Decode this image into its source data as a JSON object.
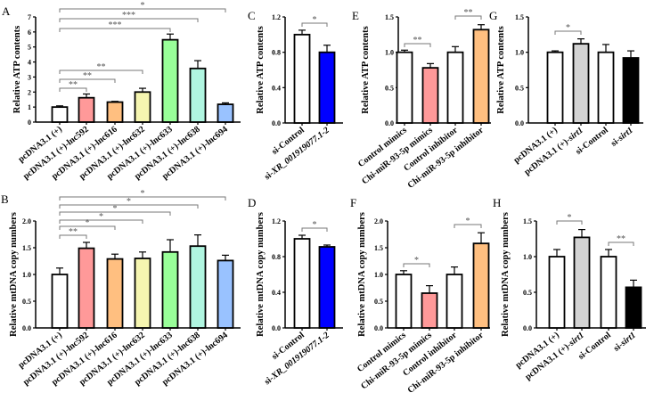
{
  "chart_data": [
    {
      "panel": "A",
      "type": "bar",
      "ylabel": "Relative ATP contents",
      "ylim": [
        0,
        7
      ],
      "ticks": [
        0,
        1,
        2,
        3,
        4,
        5,
        6,
        7
      ],
      "tick_labels": [
        "0",
        "1",
        "2",
        "3",
        "4",
        "5",
        "6",
        "7"
      ],
      "categories": [
        "pcDNA3.1 (+)",
        "pcDNA3.1 (+)-lnc592",
        "pcDNA3.1 (+)-lnc616",
        "pcDNA3.1 (+)-lnc632",
        "pcDNA3.1 (+)-lnc633",
        "pcDNA3.1 (+)-lnc638",
        "pcDNA3.1 (+)-lnc694"
      ],
      "values": [
        1.0,
        1.62,
        1.33,
        2.0,
        5.48,
        3.57,
        1.18
      ],
      "errors": [
        0.08,
        0.25,
        0.05,
        0.25,
        0.38,
        0.52,
        0.1
      ],
      "colors": [
        "#FFFFFF",
        "#FF9999",
        "#FFBF80",
        "#F5F5B0",
        "#99FF99",
        "#B0F5E0",
        "#99C2FF"
      ],
      "significance": [
        {
          "from": 0,
          "to": 1,
          "label": "**"
        },
        {
          "from": 0,
          "to": 2,
          "label": "**"
        },
        {
          "from": 0,
          "to": 3,
          "label": "**"
        },
        {
          "from": 0,
          "to": 4,
          "label": "***"
        },
        {
          "from": 0,
          "to": 5,
          "label": "***"
        },
        {
          "from": 0,
          "to": 6,
          "label": "*"
        }
      ]
    },
    {
      "panel": "B",
      "type": "bar",
      "ylabel": "Relative mtDNA copy numbers",
      "ylim": [
        0,
        2
      ],
      "ticks": [
        0,
        0.5,
        1,
        1.5,
        2
      ],
      "tick_labels": [
        "0.0",
        "0.5",
        "1.0",
        "1.5",
        "2.0"
      ],
      "categories": [
        "pcDNA3.1 (+)",
        "pcDNA3.1 (+)-lnc592",
        "pcDNA3.1 (+)-lnc616",
        "pcDNA3.1 (+)-lnc632",
        "pcDNA3.1 (+)-lnc633",
        "pcDNA3.1 (+)-lnc638",
        "pcDNA3.1 (+)-lnc694"
      ],
      "values": [
        1.0,
        1.49,
        1.29,
        1.3,
        1.42,
        1.53,
        1.26
      ],
      "errors": [
        0.12,
        0.11,
        0.09,
        0.12,
        0.23,
        0.21,
        0.1
      ],
      "colors": [
        "#FFFFFF",
        "#FF9999",
        "#FFBF80",
        "#F5F5B0",
        "#99FF99",
        "#B0F5E0",
        "#99C2FF"
      ],
      "significance": [
        {
          "from": 0,
          "to": 1,
          "label": "**"
        },
        {
          "from": 0,
          "to": 2,
          "label": "*"
        },
        {
          "from": 0,
          "to": 3,
          "label": "*"
        },
        {
          "from": 0,
          "to": 4,
          "label": "*"
        },
        {
          "from": 0,
          "to": 5,
          "label": "*"
        },
        {
          "from": 0,
          "to": 6,
          "label": "*"
        }
      ]
    },
    {
      "panel": "C",
      "type": "bar",
      "ylabel": "Relative ATP contents",
      "ylim": [
        0,
        1.2
      ],
      "ticks": [
        0,
        0.4,
        0.8,
        1.2
      ],
      "tick_labels": [
        "0.0",
        "0.4",
        "0.8",
        "1.2"
      ],
      "categories": [
        "si-Control",
        "si-XR_001919077.1-2"
      ],
      "italic": "XR_001919077.1-2",
      "values": [
        1.0,
        0.8
      ],
      "errors": [
        0.05,
        0.08
      ],
      "colors": [
        "#FFFFFF",
        "#0000FF"
      ],
      "significance": [
        {
          "from": 0,
          "to": 1,
          "label": "*"
        }
      ]
    },
    {
      "panel": "D",
      "type": "bar",
      "ylabel": "Relative mtDNA copy numbers",
      "ylim": [
        0,
        1.2
      ],
      "ticks": [
        0,
        0.4,
        0.8,
        1.2
      ],
      "tick_labels": [
        "0.0",
        "0.4",
        "0.8",
        "1.2"
      ],
      "categories": [
        "si-Control",
        "si-XR_001919077.1-2"
      ],
      "italic": "XR_001919077.1-2",
      "values": [
        1.0,
        0.91
      ],
      "errors": [
        0.04,
        0.02
      ],
      "colors": [
        "#FFFFFF",
        "#0000FF"
      ],
      "significance": [
        {
          "from": 0,
          "to": 1,
          "label": "*"
        }
      ]
    },
    {
      "panel": "E",
      "type": "bar",
      "ylabel": "Relative ATP contents",
      "ylim": [
        0,
        1.5
      ],
      "ticks": [
        0,
        0.5,
        1,
        1.5
      ],
      "tick_labels": [
        "0.0",
        "0.5",
        "1.0",
        "1.5"
      ],
      "categories": [
        "Control mimics",
        "Chi-miR-93-5p mimics",
        "Control inhibitor",
        "Chi-miR-93-5p inhibitor"
      ],
      "values": [
        1.0,
        0.78,
        1.0,
        1.32
      ],
      "errors": [
        0.03,
        0.06,
        0.08,
        0.07
      ],
      "colors": [
        "#FFFFFF",
        "#FF9999",
        "#FFFFFF",
        "#FFBF80"
      ],
      "significance": [
        {
          "from": 0,
          "to": 1,
          "label": "**"
        },
        {
          "from": 2,
          "to": 3,
          "label": "**"
        }
      ]
    },
    {
      "panel": "F",
      "type": "bar",
      "ylabel": "Relative mtDNA copy numbers",
      "ylim": [
        0,
        2
      ],
      "ticks": [
        0,
        0.5,
        1,
        1.5,
        2
      ],
      "tick_labels": [
        "0.0",
        "0.5",
        "1.0",
        "1.5",
        "2.0"
      ],
      "categories": [
        "Control mimics",
        "Chi-miR-93-5p mimics",
        "Control inhibitor",
        "Chi-miR-93-5p inhibitor"
      ],
      "values": [
        1.0,
        0.65,
        1.0,
        1.58
      ],
      "errors": [
        0.07,
        0.14,
        0.14,
        0.2
      ],
      "colors": [
        "#FFFFFF",
        "#FF9999",
        "#FFFFFF",
        "#FFBF80"
      ],
      "significance": [
        {
          "from": 0,
          "to": 1,
          "label": "*"
        },
        {
          "from": 2,
          "to": 3,
          "label": "*"
        }
      ]
    },
    {
      "panel": "G",
      "type": "bar",
      "ylabel": "Relative ATP contents",
      "ylim": [
        0,
        1.5
      ],
      "ticks": [
        0,
        0.5,
        1,
        1.5
      ],
      "tick_labels": [
        "0.0",
        "0.5",
        "1.0",
        "1.5"
      ],
      "categories": [
        "pcDNA3.1 (+)",
        "pcDNA3.1 (+)-sirt1",
        "si-Control",
        "si-sirt1"
      ],
      "italic": "sirt1",
      "values": [
        1.0,
        1.12,
        1.0,
        0.92
      ],
      "errors": [
        0.02,
        0.07,
        0.11,
        0.1
      ],
      "colors": [
        "#FFFFFF",
        "#D3D3D3",
        "#FFFFFF",
        "#000000"
      ],
      "significance": [
        {
          "from": 0,
          "to": 1,
          "label": "*"
        }
      ]
    },
    {
      "panel": "H",
      "type": "bar",
      "ylabel": "Relative mtDNA copy numbers",
      "ylim": [
        0,
        1.5
      ],
      "ticks": [
        0,
        0.5,
        1,
        1.5
      ],
      "tick_labels": [
        "0.0",
        "0.5",
        "1.0",
        "1.5"
      ],
      "categories": [
        "pcDNA3.1 (+)",
        "pcDNA3.1 (+)-sirt1",
        "si-Control",
        "si-sirt1"
      ],
      "italic": "sirt1",
      "values": [
        1.0,
        1.27,
        1.0,
        0.57
      ],
      "errors": [
        0.1,
        0.11,
        0.1,
        0.1
      ],
      "colors": [
        "#FFFFFF",
        "#D3D3D3",
        "#FFFFFF",
        "#000000"
      ],
      "significance": [
        {
          "from": 0,
          "to": 1,
          "label": "*"
        },
        {
          "from": 2,
          "to": 3,
          "label": "**"
        }
      ]
    }
  ]
}
